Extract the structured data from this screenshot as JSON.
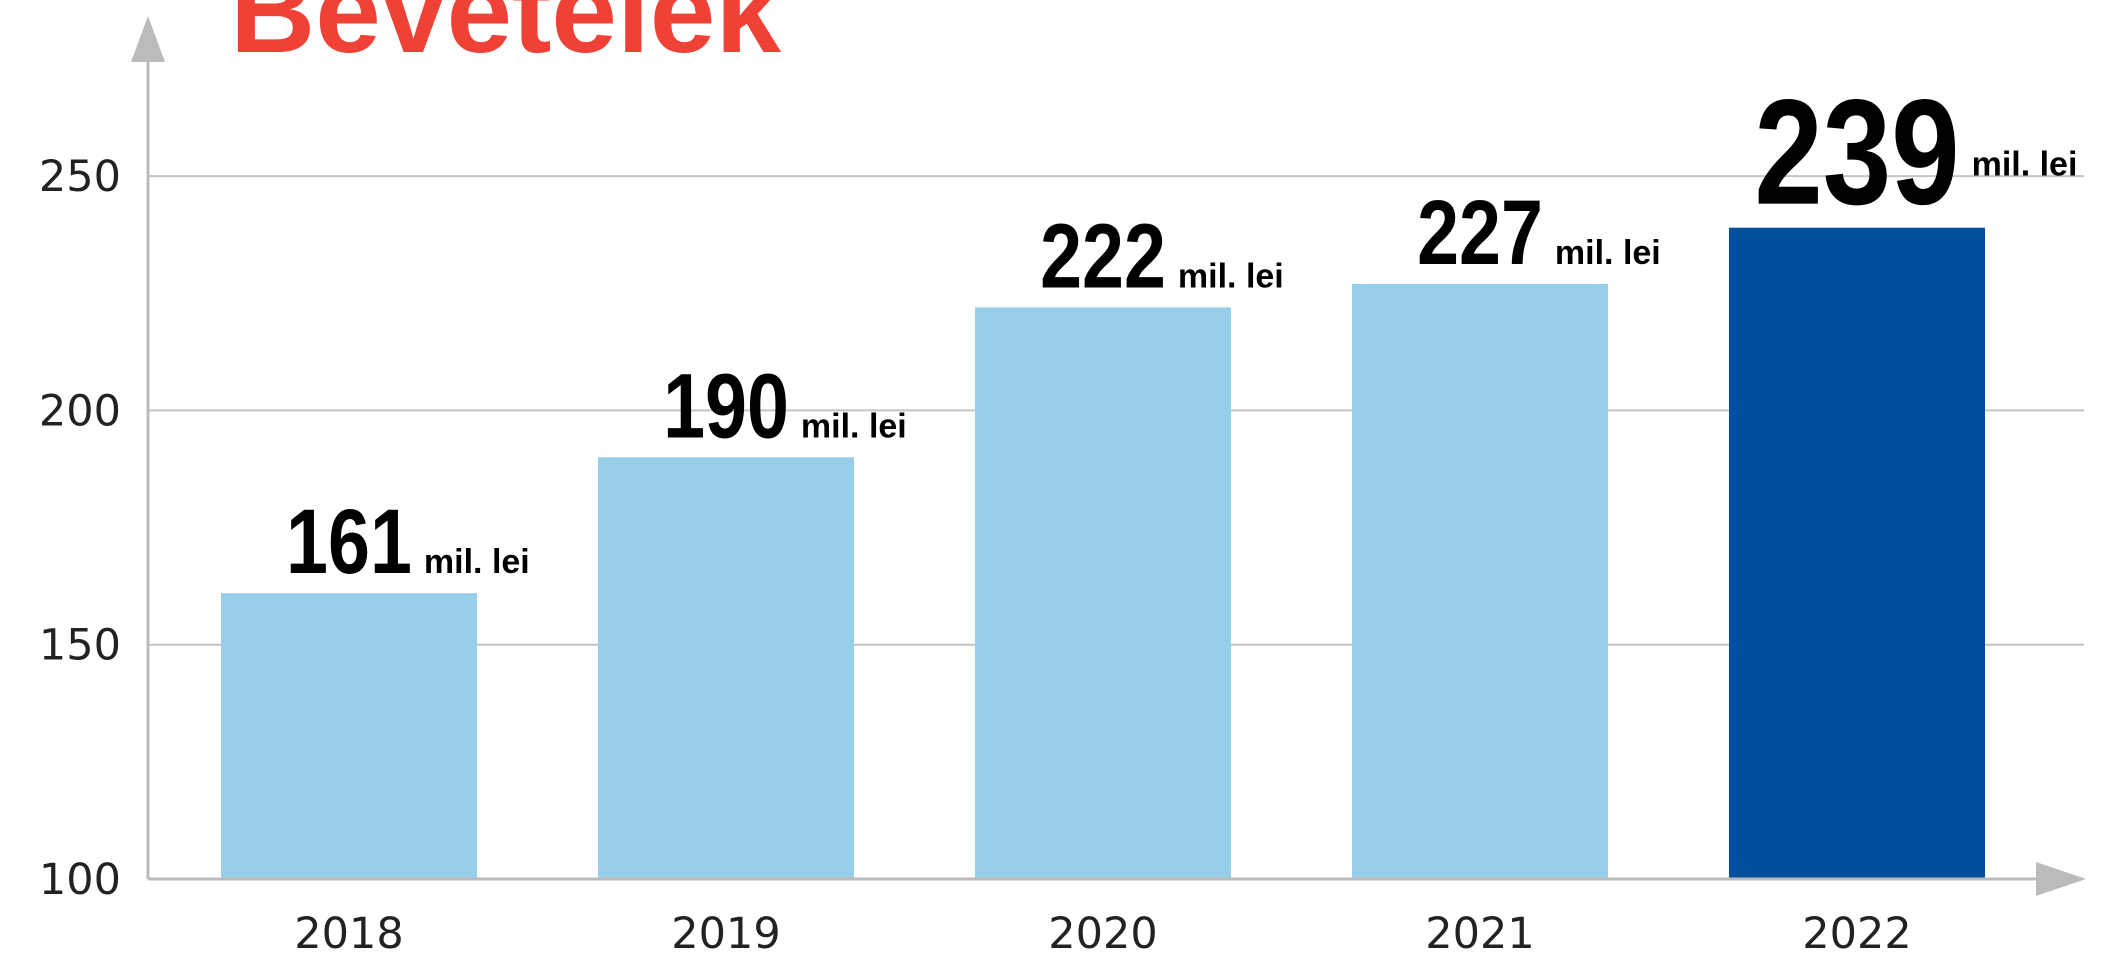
{
  "chart_data": {
    "type": "bar",
    "title": "Bevételek",
    "categories": [
      "2018",
      "2019",
      "2020",
      "2021",
      "2022"
    ],
    "values": [
      161,
      190,
      222,
      227,
      239
    ],
    "value_unit": "mil. lei",
    "colors": [
      "#97cfeb",
      "#97cfeb",
      "#97cfeb",
      "#97cfeb",
      "#00509d"
    ],
    "ylim": [
      100,
      275
    ],
    "yticks": [
      100,
      150,
      200,
      250
    ],
    "grid": true
  }
}
